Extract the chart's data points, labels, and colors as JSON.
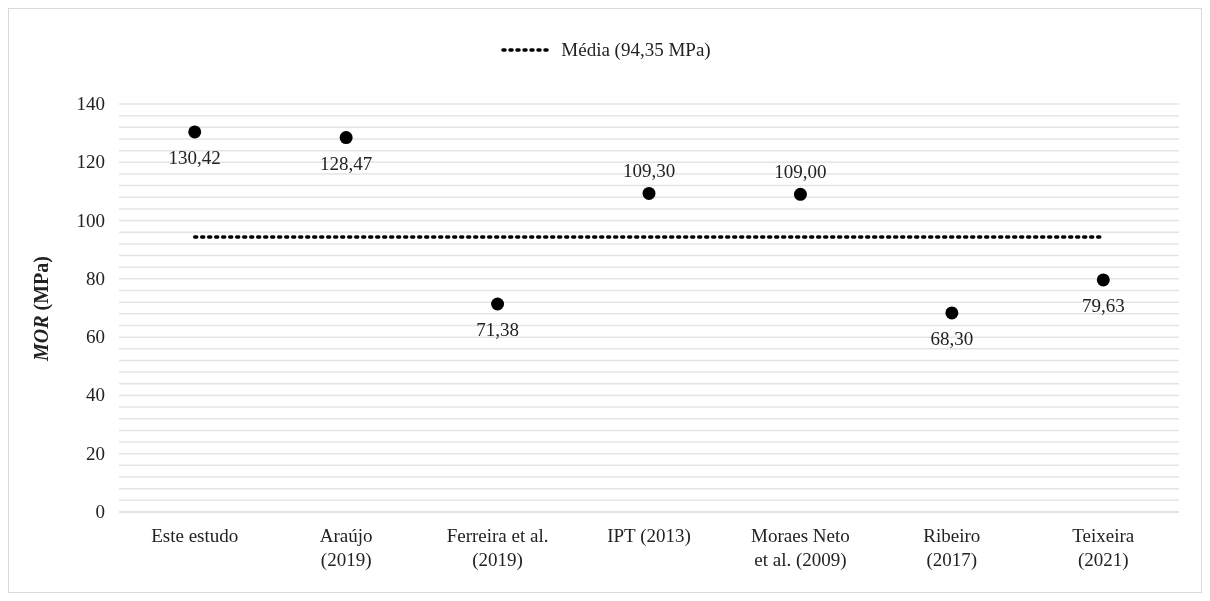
{
  "chart_data": {
    "type": "scatter",
    "ylabel": "MOR (MPa)",
    "categories": [
      "Este estudo",
      "Araújo\n(2019)",
      "Ferreira et al.\n(2019)",
      "IPT (2013)",
      "Moraes Neto\net al. (2009)",
      "Ribeiro\n(2017)",
      "Teixeira\n(2021)"
    ],
    "series": [
      {
        "color": "#000000",
        "values": [
          130.42,
          128.47,
          71.38,
          109.3,
          109.0,
          68.3,
          79.63
        ],
        "value_labels": [
          "130,42",
          "128,47",
          "71,38",
          "109,30",
          "109,00",
          "68,30",
          "79,63"
        ]
      }
    ],
    "ylim": [
      0,
      140
    ],
    "yticks": [
      0,
      {
        "value": 4,
        "label": null
      },
      {
        "value": 8,
        "label": null
      },
      {
        "value": 12,
        "label": null
      },
      {
        "value": 16,
        "label": null
      },
      20,
      {
        "value": 24,
        "label": null
      },
      {
        "value": 28,
        "label": null
      },
      {
        "value": 32,
        "label": null
      },
      {
        "value": 36,
        "label": null
      },
      40,
      {
        "value": 44,
        "label": null
      },
      {
        "value": 48,
        "label": null
      },
      {
        "value": 52,
        "label": null
      },
      {
        "value": 56,
        "label": null
      },
      60,
      {
        "value": 64,
        "label": null
      },
      {
        "value": 68,
        "label": null
      },
      {
        "value": 72,
        "label": null
      },
      {
        "value": 76,
        "label": null
      },
      80,
      {
        "value": 84,
        "label": null
      },
      {
        "value": 88,
        "label": null
      },
      {
        "value": 92,
        "label": null
      },
      {
        "value": 96,
        "label": null
      },
      100,
      {
        "value": 104,
        "label": null
      },
      {
        "value": 108,
        "label": null
      },
      {
        "value": 112,
        "label": null
      },
      {
        "value": 116,
        "label": null
      },
      120,
      {
        "value": 124,
        "label": null
      },
      {
        "value": 128,
        "label": null
      },
      {
        "value": 132,
        "label": null
      },
      {
        "value": 136,
        "label": null
      },
      140
    ],
    "ref_lines": [
      {
        "axis": "y",
        "value": 94.35,
        "label": "Média (94,35 MPa)",
        "color": "#000000",
        "line_style": "dotted"
      }
    ],
    "grid": "y",
    "legend": "top",
    "marker": "circle"
  }
}
